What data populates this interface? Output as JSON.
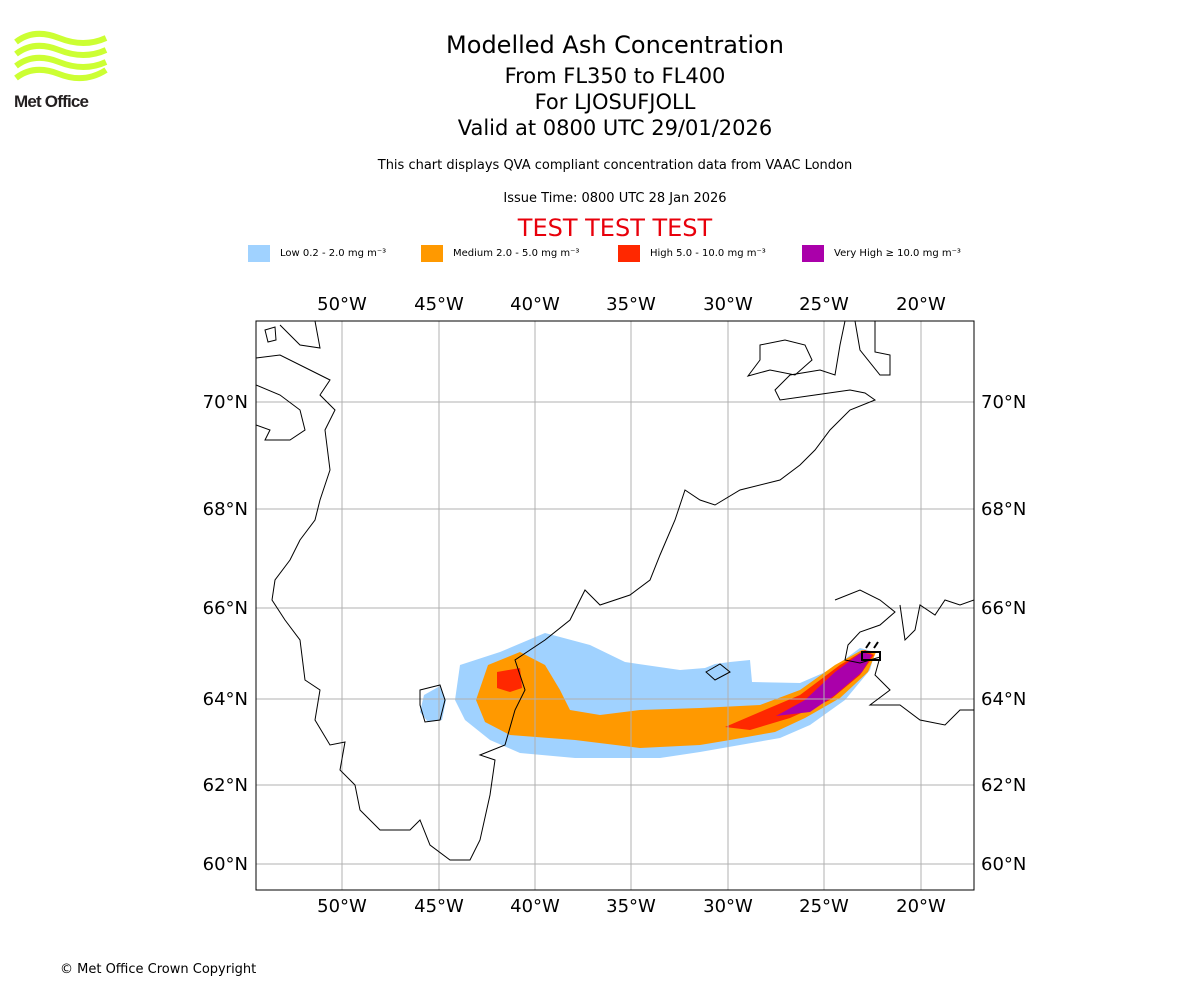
{
  "logo": {
    "text": "Met Office"
  },
  "header": {
    "title": "Modelled Ash Concentration",
    "levels": "From FL350 to FL400",
    "volcano": "For LJOSUFJOLL",
    "valid": "Valid at 0800 UTC 29/01/2026",
    "note": "This chart displays QVA compliant concentration data from VAAC London",
    "issue": "Issue Time: 0800 UTC 28 Jan 2026",
    "test_banner": "TEST TEST TEST"
  },
  "legend": [
    {
      "label": "Low 0.2 - 2.0 mg m⁻³",
      "color": "#a0d2ff"
    },
    {
      "label": "Medium 2.0 - 5.0 mg m⁻³",
      "color": "#ff9900"
    },
    {
      "label": "High 5.0 - 10.0 mg m⁻³",
      "color": "#ff2800"
    },
    {
      "label": "Very High ≥ 10.0 mg m⁻³",
      "color": "#aa00aa"
    }
  ],
  "map": {
    "lon_labels": [
      "50°W",
      "45°W",
      "40°W",
      "35°W",
      "30°W",
      "25°W",
      "20°W"
    ],
    "lat_labels": [
      "70°N",
      "68°N",
      "66°N",
      "64°N",
      "62°N",
      "60°N"
    ]
  },
  "footer": {
    "copyright": "© Met Office Crown Copyright"
  }
}
